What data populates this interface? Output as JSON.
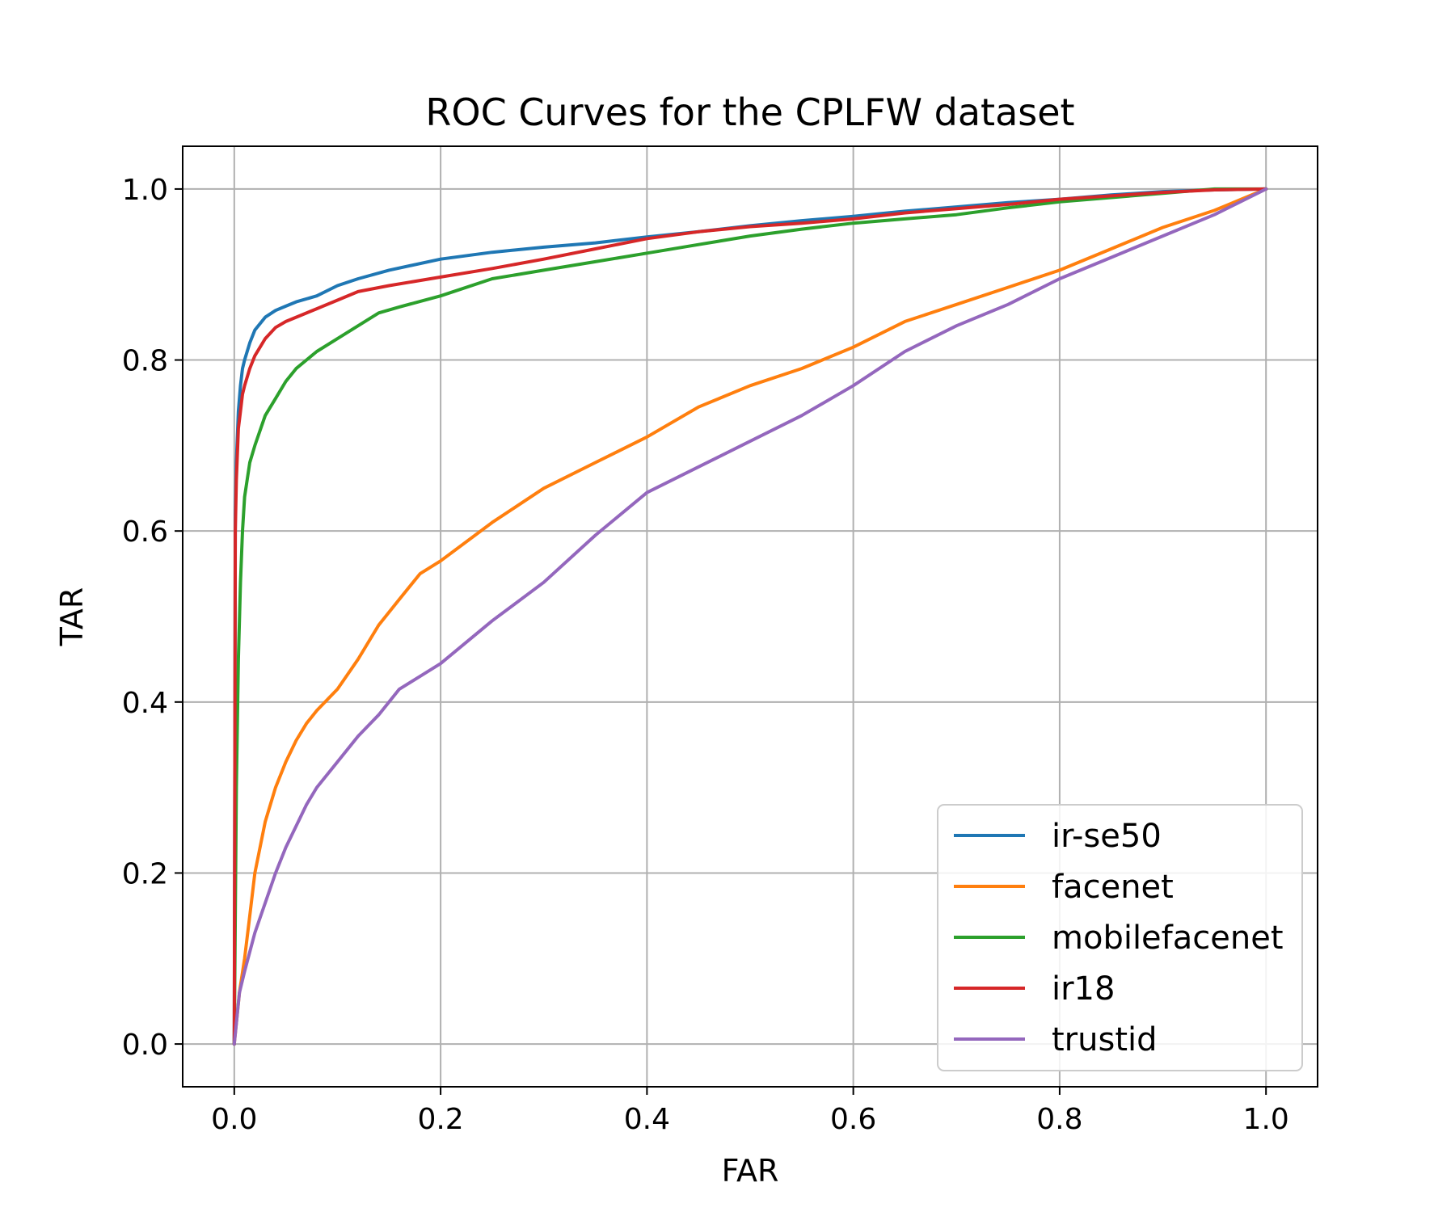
{
  "chart_data": {
    "type": "line",
    "title": "ROC Curves for the CPLFW dataset",
    "xlabel": "FAR",
    "ylabel": "TAR",
    "xlim": [
      -0.05,
      1.05
    ],
    "ylim": [
      -0.05,
      1.05
    ],
    "xticks": [
      "0.0",
      "0.2",
      "0.4",
      "0.6",
      "0.8",
      "1.0"
    ],
    "yticks": [
      "0.0",
      "0.2",
      "0.4",
      "0.6",
      "0.8",
      "1.0"
    ],
    "grid": true,
    "legend_position": "lower-right",
    "series": [
      {
        "name": "ir-se50",
        "color": "#1f77b4",
        "x": [
          0,
          0.001,
          0.002,
          0.004,
          0.006,
          0.008,
          0.01,
          0.015,
          0.02,
          0.03,
          0.04,
          0.05,
          0.06,
          0.08,
          0.1,
          0.12,
          0.15,
          0.2,
          0.25,
          0.3,
          0.35,
          0.4,
          0.45,
          0.5,
          0.55,
          0.6,
          0.65,
          0.7,
          0.75,
          0.8,
          0.85,
          0.9,
          0.95,
          1.0
        ],
        "y": [
          0,
          0.62,
          0.68,
          0.74,
          0.77,
          0.79,
          0.8,
          0.82,
          0.835,
          0.85,
          0.858,
          0.863,
          0.868,
          0.875,
          0.887,
          0.895,
          0.905,
          0.918,
          0.926,
          0.932,
          0.937,
          0.944,
          0.95,
          0.957,
          0.963,
          0.968,
          0.974,
          0.979,
          0.984,
          0.988,
          0.993,
          0.997,
          0.999,
          1.0
        ]
      },
      {
        "name": "facenet",
        "color": "#ff7f0e",
        "x": [
          0,
          0.005,
          0.01,
          0.015,
          0.02,
          0.03,
          0.04,
          0.05,
          0.06,
          0.07,
          0.08,
          0.1,
          0.12,
          0.14,
          0.16,
          0.18,
          0.2,
          0.25,
          0.3,
          0.35,
          0.4,
          0.45,
          0.5,
          0.55,
          0.6,
          0.65,
          0.7,
          0.75,
          0.8,
          0.85,
          0.9,
          0.95,
          1.0
        ],
        "y": [
          0,
          0.06,
          0.1,
          0.15,
          0.2,
          0.26,
          0.3,
          0.33,
          0.355,
          0.375,
          0.39,
          0.415,
          0.45,
          0.49,
          0.52,
          0.55,
          0.565,
          0.61,
          0.65,
          0.68,
          0.71,
          0.745,
          0.77,
          0.79,
          0.815,
          0.845,
          0.865,
          0.885,
          0.905,
          0.93,
          0.955,
          0.975,
          1.0
        ]
      },
      {
        "name": "mobilefacenet",
        "color": "#2ca02c",
        "x": [
          0,
          0.002,
          0.004,
          0.006,
          0.008,
          0.01,
          0.015,
          0.02,
          0.03,
          0.04,
          0.05,
          0.06,
          0.08,
          0.1,
          0.12,
          0.14,
          0.16,
          0.2,
          0.25,
          0.3,
          0.35,
          0.4,
          0.45,
          0.5,
          0.55,
          0.6,
          0.65,
          0.7,
          0.75,
          0.8,
          0.85,
          0.9,
          0.95,
          1.0
        ],
        "y": [
          0,
          0.3,
          0.45,
          0.54,
          0.6,
          0.64,
          0.68,
          0.7,
          0.735,
          0.755,
          0.775,
          0.79,
          0.81,
          0.825,
          0.84,
          0.855,
          0.862,
          0.875,
          0.895,
          0.905,
          0.915,
          0.925,
          0.935,
          0.945,
          0.953,
          0.96,
          0.965,
          0.97,
          0.978,
          0.985,
          0.99,
          0.995,
          1.0,
          1.0
        ]
      },
      {
        "name": "ir18",
        "color": "#d62728",
        "x": [
          0,
          0.001,
          0.002,
          0.004,
          0.006,
          0.008,
          0.01,
          0.015,
          0.02,
          0.03,
          0.04,
          0.05,
          0.06,
          0.08,
          0.1,
          0.12,
          0.15,
          0.2,
          0.25,
          0.3,
          0.35,
          0.4,
          0.45,
          0.5,
          0.55,
          0.6,
          0.65,
          0.7,
          0.75,
          0.8,
          0.85,
          0.9,
          0.95,
          1.0
        ],
        "y": [
          0,
          0.6,
          0.66,
          0.72,
          0.74,
          0.76,
          0.77,
          0.79,
          0.805,
          0.825,
          0.838,
          0.845,
          0.85,
          0.86,
          0.87,
          0.88,
          0.887,
          0.897,
          0.907,
          0.918,
          0.93,
          0.942,
          0.95,
          0.956,
          0.96,
          0.965,
          0.972,
          0.977,
          0.982,
          0.988,
          0.992,
          0.996,
          0.999,
          1.0
        ]
      },
      {
        "name": "trustid",
        "color": "#9467bd",
        "x": [
          0,
          0.005,
          0.01,
          0.02,
          0.03,
          0.04,
          0.05,
          0.06,
          0.07,
          0.08,
          0.1,
          0.12,
          0.14,
          0.16,
          0.18,
          0.2,
          0.25,
          0.3,
          0.35,
          0.4,
          0.45,
          0.5,
          0.55,
          0.6,
          0.65,
          0.7,
          0.75,
          0.8,
          0.85,
          0.9,
          0.95,
          1.0
        ],
        "y": [
          0,
          0.06,
          0.085,
          0.13,
          0.165,
          0.2,
          0.23,
          0.255,
          0.28,
          0.3,
          0.33,
          0.36,
          0.385,
          0.415,
          0.43,
          0.445,
          0.495,
          0.54,
          0.595,
          0.645,
          0.675,
          0.705,
          0.735,
          0.77,
          0.81,
          0.84,
          0.865,
          0.895,
          0.92,
          0.945,
          0.97,
          1.0
        ]
      }
    ]
  }
}
